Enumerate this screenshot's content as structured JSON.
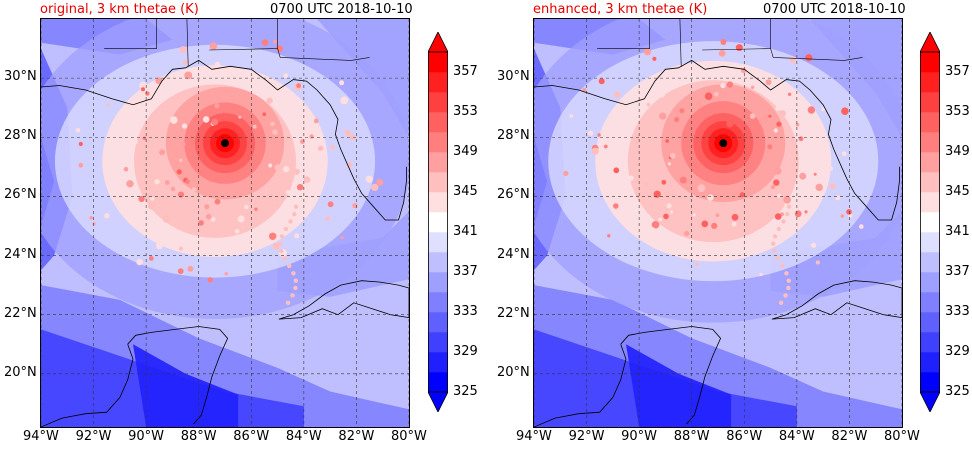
{
  "panels": [
    {
      "id": "original",
      "title_left": "original, 3 km thetae (K)",
      "title_right": "0700 UTC 2018-10-10",
      "eye": {
        "lon": -87.0,
        "lat": 27.8
      },
      "intensity": 0.85
    },
    {
      "id": "enhanced",
      "title_left": "enhanced, 3 km thetae (K)",
      "title_right": "0700 UTC 2018-10-10",
      "eye": {
        "lon": -86.8,
        "lat": 27.8
      },
      "intensity": 1.0
    }
  ],
  "map": {
    "lon_range": [
      -94,
      -80
    ],
    "lat_range": [
      18.2,
      32
    ],
    "lon_ticks": [
      -94,
      -92,
      -90,
      -88,
      -86,
      -84,
      -82,
      -80
    ],
    "lon_tick_labels": [
      "94°W",
      "92°W",
      "90°W",
      "88°W",
      "86°W",
      "84°W",
      "82°W",
      "80°W"
    ],
    "lat_ticks": [
      20,
      22,
      24,
      26,
      28,
      30
    ],
    "lat_tick_labels": [
      "20°N",
      "22°N",
      "24°N",
      "26°N",
      "28°N",
      "30°N"
    ]
  },
  "colorbar": {
    "levels": [
      325,
      327,
      329,
      331,
      333,
      335,
      337,
      339,
      341,
      343,
      345,
      347,
      349,
      351,
      353,
      355,
      357,
      359
    ],
    "tick_values": [
      325,
      329,
      333,
      337,
      341,
      345,
      349,
      353,
      357
    ],
    "tick_labels": [
      "325",
      "329",
      "333",
      "337",
      "341",
      "345",
      "349",
      "353",
      "357"
    ],
    "colors": [
      "#0000ff",
      "#2020ff",
      "#4040ff",
      "#6060ff",
      "#7f7fff",
      "#9f9fff",
      "#bfbfff",
      "#dfdfff",
      "#ffffff",
      "#ffdfdf",
      "#ffbfbf",
      "#ff9f9f",
      "#ff7f7f",
      "#ff6060",
      "#ff4040",
      "#ff2020",
      "#ff0000"
    ],
    "under_color": "#0000ff",
    "over_color": "#ff0000"
  }
}
